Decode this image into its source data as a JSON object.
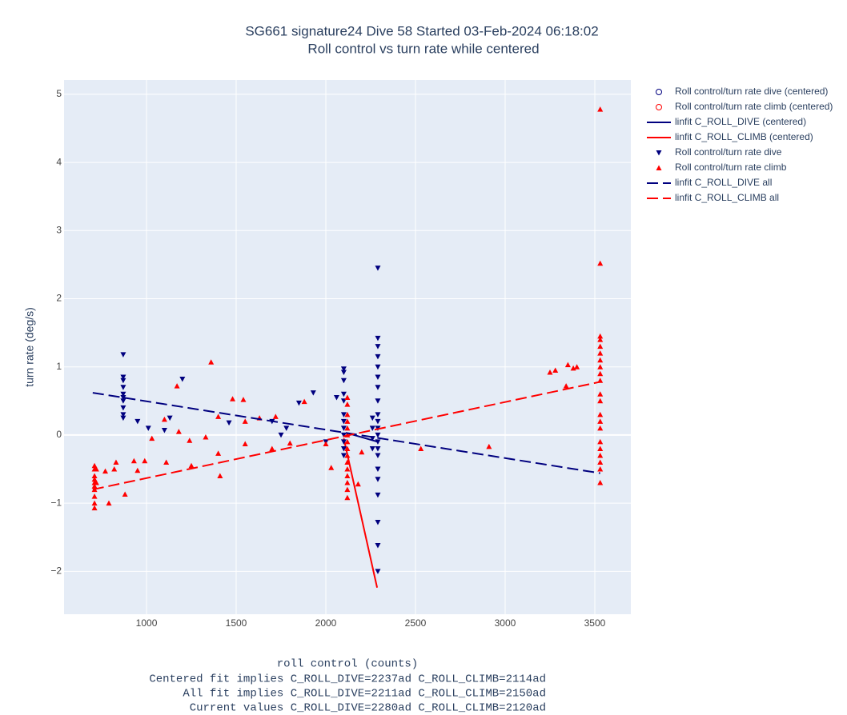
{
  "chart_data": {
    "type": "scatter",
    "title": "SG661 signature24 Dive 58 Started 03-Feb-2024 06:18:02",
    "subtitle": "Roll control vs turn rate while centered",
    "xlabel": [
      "roll control (counts)",
      "Centered fit implies C_ROLL_DIVE=2237ad C_ROLL_CLIMB=2114ad",
      "All fit implies C_ROLL_DIVE=2211ad C_ROLL_CLIMB=2150ad",
      "Current values C_ROLL_DIVE=2280ad C_ROLL_CLIMB=2120ad"
    ],
    "ylabel": "turn rate (deg/s)",
    "xlim": [
      540,
      3701
    ],
    "ylim": [
      -2.63,
      5.21
    ],
    "xticks": [
      1000,
      1500,
      2000,
      2500,
      3000,
      3500
    ],
    "yticks": [
      {
        "value": -2,
        "label": "−2"
      },
      {
        "value": -1,
        "label": "−1"
      },
      0,
      1,
      2,
      3,
      4,
      5
    ],
    "grid": true,
    "legend": "outside-right",
    "series": [
      {
        "name": "Roll control/turn rate dive (centered)",
        "color": "#00007f",
        "mode": "markers",
        "symbol": "circle-open",
        "x": [],
        "values": []
      },
      {
        "name": "Roll control/turn rate climb (centered)",
        "color": "#ff0000",
        "mode": "markers",
        "symbol": "circle-open",
        "x": [],
        "values": []
      },
      {
        "name": "linfit C_ROLL_DIVE (centered)",
        "color": "#00007f",
        "mode": "lines",
        "dash": "solid",
        "x": [
          2130,
          2290
        ],
        "values": [
          0.02,
          -0.1
        ]
      },
      {
        "name": "linfit C_ROLL_CLIMB (centered)",
        "color": "#ff0000",
        "mode": "lines",
        "dash": "solid",
        "x": [
          2100,
          2286
        ],
        "values": [
          -0.05,
          -2.24
        ]
      },
      {
        "name": "Roll control/turn rate dive",
        "color": "#00007f",
        "mode": "markers",
        "symbol": "triangle-down",
        "x": [
          870,
          870,
          870,
          870,
          870,
          870,
          870,
          870,
          870,
          870,
          950,
          1010,
          1100,
          1130,
          1200,
          1460,
          1700,
          1750,
          1780,
          1850,
          1930,
          2060,
          2000,
          2100,
          2100,
          2100,
          2100,
          2100,
          2100,
          2100,
          2100,
          2100,
          2100,
          2100,
          2100,
          2260,
          2260,
          2260,
          2260,
          2290,
          2290,
          2290,
          2290,
          2290,
          2290,
          2290,
          2290,
          2290,
          2290,
          2290,
          2290,
          2290,
          2290,
          2290,
          2290,
          2290,
          2290,
          2290,
          2290,
          2290
        ],
        "values": [
          1.18,
          0.85,
          0.8,
          0.7,
          0.6,
          0.55,
          0.5,
          0.4,
          0.3,
          0.25,
          0.2,
          0.1,
          0.07,
          0.25,
          0.82,
          0.18,
          0.2,
          0,
          0.1,
          0.47,
          0.62,
          0.55,
          -0.1,
          0.97,
          0.92,
          0.8,
          0.6,
          0.5,
          0.3,
          0.2,
          0.1,
          0,
          -0.1,
          -0.2,
          -0.3,
          0.25,
          0.1,
          -0.05,
          -0.2,
          2.45,
          1.42,
          1.3,
          1.15,
          1.0,
          0.85,
          0.7,
          0.5,
          0.3,
          0.2,
          0.1,
          0,
          -0.1,
          -0.2,
          -0.3,
          -0.5,
          -0.65,
          -0.88,
          -1.28,
          -1.62,
          -2.0
        ]
      },
      {
        "name": "Roll control/turn rate climb",
        "color": "#ff0000",
        "mode": "markers",
        "symbol": "triangle-up",
        "x": [
          710,
          710,
          710,
          710,
          710,
          710,
          710,
          710,
          710,
          710,
          720,
          720,
          770,
          790,
          820,
          830,
          880,
          930,
          950,
          990,
          1030,
          1100,
          1110,
          1170,
          1180,
          1240,
          1250,
          1330,
          1360,
          1400,
          1400,
          1410,
          1480,
          1540,
          1550,
          1550,
          1630,
          1700,
          1720,
          1800,
          1880,
          2000,
          2030,
          2120,
          2120,
          2120,
          2120,
          2120,
          2120,
          2120,
          2120,
          2120,
          2120,
          2120,
          2120,
          2120,
          2120,
          2120,
          2180,
          2200,
          2530,
          2910,
          3250,
          3280,
          3340,
          3350,
          3380,
          3400,
          3530,
          3530,
          3530,
          3530,
          3530,
          3530,
          3530,
          3530,
          3530,
          3530,
          3530,
          3530,
          3530,
          3530,
          3530,
          3530,
          3530,
          3530,
          3530,
          3530,
          3530
        ],
        "values": [
          -0.45,
          -0.5,
          -0.6,
          -0.65,
          -0.7,
          -0.75,
          -0.8,
          -0.9,
          -1.0,
          -1.07,
          -0.5,
          -0.7,
          -0.53,
          -1.0,
          -0.5,
          -0.4,
          -0.87,
          -0.38,
          -0.52,
          -0.38,
          -0.05,
          0.23,
          -0.4,
          0.72,
          0.05,
          -0.08,
          -0.45,
          -0.03,
          1.07,
          0.27,
          -0.27,
          -0.6,
          0.53,
          0.52,
          0.2,
          -0.13,
          0.25,
          -0.2,
          0.27,
          -0.12,
          0.49,
          -0.13,
          -0.48,
          0.55,
          0.45,
          0.3,
          0.2,
          0.1,
          0,
          -0.1,
          -0.2,
          -0.3,
          -0.4,
          -0.5,
          -0.6,
          -0.7,
          -0.8,
          -0.92,
          -0.72,
          -0.25,
          -0.2,
          -0.17,
          0.92,
          0.95,
          0.72,
          1.03,
          0.98,
          1.0,
          4.78,
          2.52,
          1.45,
          1.4,
          1.3,
          1.2,
          1.1,
          1.0,
          0.9,
          0.8,
          0.6,
          0.5,
          0.3,
          0.2,
          0.1,
          -0.1,
          -0.2,
          -0.3,
          -0.4,
          -0.5,
          -0.7
        ]
      },
      {
        "name": "linfit C_ROLL_DIVE all",
        "color": "#00007f",
        "mode": "lines",
        "dash": "dash",
        "x": [
          700,
          3530
        ],
        "values": [
          0.62,
          -0.56
        ]
      },
      {
        "name": "linfit C_ROLL_CLIMB all",
        "color": "#ff0000",
        "mode": "lines",
        "dash": "dash",
        "x": [
          700,
          3530
        ],
        "values": [
          -0.8,
          0.78
        ]
      }
    ]
  }
}
